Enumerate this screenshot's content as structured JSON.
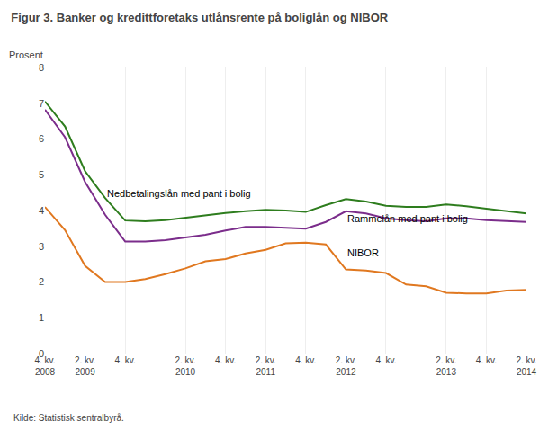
{
  "chart_data": {
    "type": "line",
    "title": "Figur 3. Banker og kredittforetaks utlånsrente på boliglån og NIBOR",
    "ylabel": "Prosent",
    "source": "Kilde: Statistisk sentralbyrå.",
    "categories": [
      "4. kv.\n2008",
      null,
      "2. kv.\n2009",
      null,
      "4. kv.\n",
      null,
      null,
      "2. kv.\n2010",
      null,
      "4. kv.\n",
      null,
      "2. kv.\n2011",
      null,
      "4. kv.\n",
      null,
      "2. kv.\n2012",
      null,
      "4. kv.\n",
      null,
      null,
      "2. kv.\n2013",
      null,
      "4. kv.\n",
      null,
      "2. kv.\n2014"
    ],
    "series": [
      {
        "color": "#2e7d1e",
        "values": [
          7.05,
          6.35,
          5.1,
          4.35,
          3.72,
          3.7,
          3.73,
          3.8,
          3.87,
          3.93,
          3.98,
          4.02,
          4.0,
          3.96,
          4.15,
          4.32,
          4.25,
          4.13,
          4.1,
          4.1,
          4.17,
          4.12,
          4.05,
          3.98,
          3.92
        ]
      },
      {
        "color": "#7b2d8b",
        "values": [
          6.82,
          6.05,
          4.8,
          3.88,
          3.13,
          3.13,
          3.17,
          3.24,
          3.32,
          3.44,
          3.54,
          3.54,
          3.52,
          3.49,
          3.68,
          3.98,
          3.92,
          3.78,
          3.73,
          3.7,
          3.78,
          3.78,
          3.73,
          3.7,
          3.68
        ]
      },
      {
        "color": "#e07820",
        "values": [
          4.1,
          3.45,
          2.45,
          2.0,
          2.0,
          2.08,
          2.22,
          2.38,
          2.58,
          2.64,
          2.8,
          2.9,
          3.08,
          3.1,
          3.05,
          2.35,
          2.32,
          2.25,
          1.93,
          1.88,
          1.7,
          1.68,
          1.68,
          1.76,
          1.78
        ]
      }
    ],
    "annotations": [
      {
        "text": "Nedbetalingslån med pant i bolig",
        "x": 3,
        "y": 4.28
      },
      {
        "text": "Rammelån med pant i bolig",
        "x": 15,
        "y": 3.58
      },
      {
        "text": "NIBOR",
        "x": 15,
        "y": 2.62
      }
    ],
    "ylim": [
      0,
      8
    ],
    "yticks": [
      0,
      1,
      2,
      3,
      4,
      5,
      6,
      7,
      8
    ],
    "grid": true
  }
}
